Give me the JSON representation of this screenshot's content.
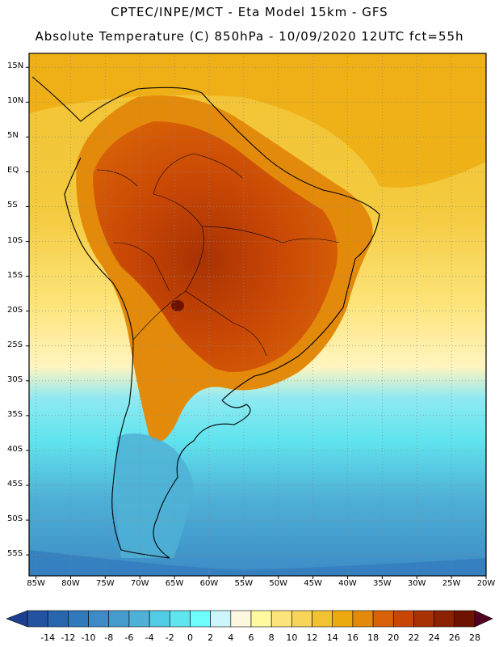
{
  "header": {
    "line1": "CPTEC/INPE/MCT -  Eta Model 15km - GFS",
    "line2": "Absolute Temperature (C) 850hPa - 10/09/2020 12UTC fct=55h"
  },
  "map": {
    "lat_labels": [
      "15N",
      "10N",
      "5N",
      "EQ",
      "5S",
      "10S",
      "15S",
      "20S",
      "25S",
      "30S",
      "35S",
      "40S",
      "45S",
      "50S",
      "55S"
    ],
    "lon_labels": [
      "85W",
      "80W",
      "75W",
      "70W",
      "65W",
      "60W",
      "55W",
      "50W",
      "45W",
      "40W",
      "35W",
      "30W",
      "25W",
      "20W"
    ],
    "lat_range": [
      17,
      -58
    ],
    "lon_range": [
      -86,
      -20
    ],
    "grid": true
  },
  "colorbar": {
    "ticks": [
      "-14",
      "-12",
      "-10",
      "-8",
      "-6",
      "-4",
      "-2",
      "0",
      "2",
      "4",
      "6",
      "8",
      "10",
      "12",
      "14",
      "16",
      "18",
      "20",
      "22",
      "24",
      "26",
      "28"
    ],
    "colors": [
      "#1c3f8f",
      "#2353a0",
      "#2a66b0",
      "#3279bc",
      "#3c8bc6",
      "#469ccd",
      "#4fb1d6",
      "#52cbe4",
      "#60e4ee",
      "#6ffcfc",
      "#ccf6fb",
      "#fff8e1",
      "#fffaa0",
      "#fde47a",
      "#f8d45a",
      "#f2c233",
      "#edaa0e",
      "#e48a0a",
      "#d86006",
      "#c84605",
      "#a83204",
      "#8c2203",
      "#6e1202",
      "#540020"
    ]
  }
}
